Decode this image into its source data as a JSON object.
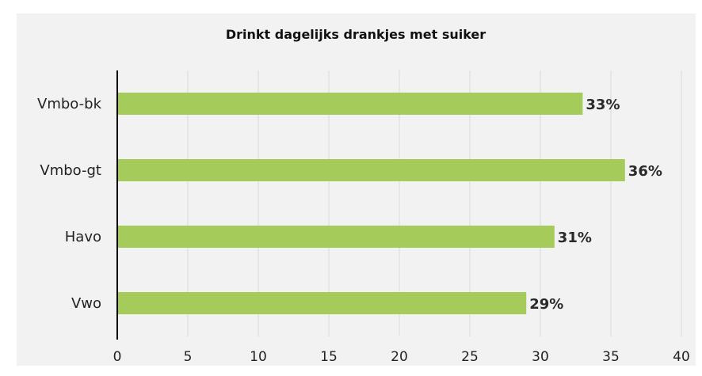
{
  "chart_data": {
    "type": "bar",
    "orientation": "horizontal",
    "title": "Drinkt dagelijks drankjes met suiker",
    "categories": [
      "Vmbo-bk",
      "Vmbo-gt",
      "Havo",
      "Vwo"
    ],
    "values": [
      33,
      36,
      31,
      29
    ],
    "data_labels": [
      "33%",
      "36%",
      "31%",
      "29%"
    ],
    "xlim": [
      0,
      40
    ],
    "xticks": [
      0,
      5,
      10,
      15,
      20,
      25,
      30,
      35,
      40
    ],
    "xlabel": "",
    "ylabel": "",
    "grid": true,
    "legend": "none",
    "colors": {
      "bar": "#a5cc5b",
      "background": "#f2f2f2",
      "grid": "#d9d9d9",
      "axis": "#000000"
    }
  }
}
